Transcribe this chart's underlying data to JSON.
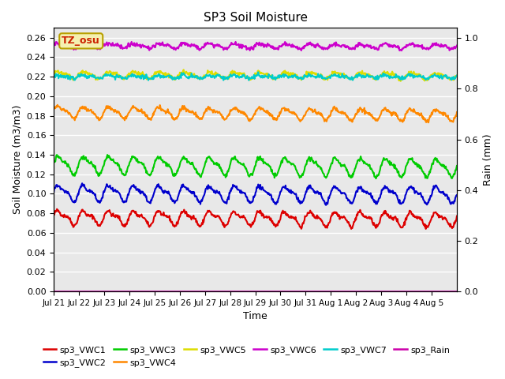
{
  "title": "SP3 Soil Moisture",
  "xlabel": "Time",
  "ylabel_left": "Soil Moisture (m3/m3)",
  "ylabel_right": "Rain (mm)",
  "annotation_text": "TZ_osu",
  "annotation_box_color": "#f5f0b0",
  "annotation_text_color": "#cc2200",
  "annotation_border_color": "#b8a000",
  "ylim_left": [
    0.0,
    0.27
  ],
  "ylim_right": [
    0.0,
    1.04
  ],
  "background_color": "#e8e8e8",
  "grid_color": "#ffffff",
  "series_list": [
    {
      "name": "sp3_VWC1",
      "color": "#dd0000",
      "base": 0.076,
      "amp": 0.006,
      "amp2": 0.003,
      "trend": -0.002,
      "lw": 1.5
    },
    {
      "name": "sp3_VWC2",
      "color": "#0000cc",
      "base": 0.101,
      "amp": 0.007,
      "amp2": 0.003,
      "trend": -0.002,
      "lw": 1.5
    },
    {
      "name": "sp3_VWC3",
      "color": "#00cc00",
      "base": 0.13,
      "amp": 0.008,
      "amp2": 0.003,
      "trend": -0.003,
      "lw": 1.5
    },
    {
      "name": "sp3_VWC4",
      "color": "#ff8800",
      "base": 0.184,
      "amp": 0.005,
      "amp2": 0.002,
      "trend": -0.003,
      "lw": 1.5
    },
    {
      "name": "sp3_VWC5",
      "color": "#dddd00",
      "base": 0.222,
      "amp": 0.003,
      "amp2": 0.001,
      "trend": -0.001,
      "lw": 1.5
    },
    {
      "name": "sp3_VWC6",
      "color": "#cc00cc",
      "base": 0.252,
      "amp": 0.002,
      "amp2": 0.001,
      "trend": -0.001,
      "lw": 1.5
    },
    {
      "name": "sp3_VWC7",
      "color": "#00cccc",
      "base": 0.22,
      "amp": 0.001,
      "amp2": 0.001,
      "trend": 0.0,
      "lw": 1.5
    },
    {
      "name": "sp3_Rain",
      "color": "#cc00aa",
      "base": 0.0005,
      "amp": 0.0,
      "amp2": 0.0,
      "trend": 0.0,
      "lw": 1.2
    }
  ],
  "xtick_labels": [
    "Jul 21",
    "Jul 22",
    "Jul 23",
    "Jul 24",
    "Jul 25",
    "Jul 26",
    "Jul 27",
    "Jul 28",
    "Jul 29",
    "Jul 30",
    "Jul 31",
    "Aug 1",
    "Aug 2",
    "Aug 3",
    "Aug 4",
    "Aug 5"
  ],
  "ytick_left": [
    0.0,
    0.02,
    0.04,
    0.06,
    0.08,
    0.1,
    0.12,
    0.14,
    0.16,
    0.18,
    0.2,
    0.22,
    0.24,
    0.26
  ],
  "ytick_right": [
    0.0,
    0.2,
    0.4,
    0.6,
    0.8,
    1.0
  ],
  "legend": [
    {
      "label": "sp3_VWC1",
      "color": "#dd0000"
    },
    {
      "label": "sp3_VWC2",
      "color": "#0000cc"
    },
    {
      "label": "sp3_VWC3",
      "color": "#00cc00"
    },
    {
      "label": "sp3_VWC4",
      "color": "#ff8800"
    },
    {
      "label": "sp3_VWC5",
      "color": "#dddd00"
    },
    {
      "label": "sp3_VWC6",
      "color": "#cc00cc"
    },
    {
      "label": "sp3_VWC7",
      "color": "#00cccc"
    },
    {
      "label": "sp3_Rain",
      "color": "#cc00aa"
    }
  ]
}
